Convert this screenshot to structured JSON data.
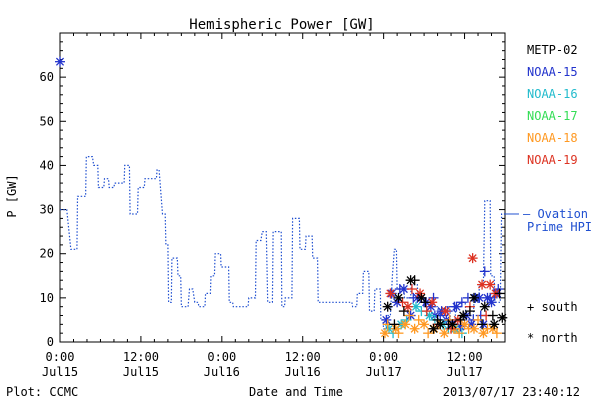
{
  "chart_data": {
    "type": "line",
    "title": "Hemispheric Power [GW]",
    "ylabel": "P [GW]",
    "xlabel": "Date and Time",
    "xlim": [
      0,
      66
    ],
    "ylim": [
      0,
      70
    ],
    "yticks": [
      0,
      10,
      20,
      30,
      40,
      50,
      60
    ],
    "xticks": [
      {
        "x": 0,
        "time": "0:00",
        "date": "Jul15"
      },
      {
        "x": 12,
        "time": "12:00",
        "date": "Jul15"
      },
      {
        "x": 24,
        "time": "0:00",
        "date": "Jul16"
      },
      {
        "x": 36,
        "time": "12:00",
        "date": "Jul16"
      },
      {
        "x": 48,
        "time": "0:00",
        "date": "Jul17"
      },
      {
        "x": 60,
        "time": "12:00",
        "date": "Jul17"
      }
    ],
    "series": [
      {
        "name": "Ovation Prime HPI",
        "color": "#1f4fd0",
        "style": "dotted-step",
        "points": [
          [
            0,
            30
          ],
          [
            1,
            30
          ],
          [
            1.6,
            21
          ],
          [
            2.5,
            21
          ],
          [
            2.6,
            33
          ],
          [
            3.8,
            33
          ],
          [
            3.9,
            42
          ],
          [
            4.8,
            42
          ],
          [
            5,
            40
          ],
          [
            5.6,
            40
          ],
          [
            5.7,
            35
          ],
          [
            6.5,
            35
          ],
          [
            6.6,
            37
          ],
          [
            7.2,
            37
          ],
          [
            7.3,
            35
          ],
          [
            8,
            35
          ],
          [
            8.1,
            36
          ],
          [
            9.5,
            36
          ],
          [
            9.6,
            40
          ],
          [
            10.3,
            40
          ],
          [
            10.4,
            29
          ],
          [
            11.5,
            29
          ],
          [
            11.6,
            35
          ],
          [
            12.5,
            35
          ],
          [
            12.6,
            37
          ],
          [
            14.3,
            37
          ],
          [
            14.4,
            39
          ],
          [
            14.7,
            39
          ],
          [
            15.2,
            29
          ],
          [
            15.6,
            29
          ],
          [
            15.7,
            22
          ],
          [
            16.0,
            22
          ],
          [
            16.1,
            9
          ],
          [
            16.5,
            9
          ],
          [
            16.6,
            19
          ],
          [
            17.4,
            19
          ],
          [
            17.5,
            15
          ],
          [
            17.9,
            15
          ],
          [
            18,
            8
          ],
          [
            19,
            8
          ],
          [
            19.2,
            12
          ],
          [
            19.7,
            12
          ],
          [
            20,
            9
          ],
          [
            20.5,
            9
          ],
          [
            20.6,
            8
          ],
          [
            21.5,
            8
          ],
          [
            21.6,
            11
          ],
          [
            22.3,
            11
          ],
          [
            22.4,
            15
          ],
          [
            22.9,
            15
          ],
          [
            23,
            20
          ],
          [
            23.8,
            20
          ],
          [
            23.9,
            17
          ],
          [
            25,
            17
          ],
          [
            25.1,
            9
          ],
          [
            25.6,
            9
          ],
          [
            25.7,
            8
          ],
          [
            27.9,
            8
          ],
          [
            28,
            10
          ],
          [
            29,
            10
          ],
          [
            29.1,
            23
          ],
          [
            29.8,
            23
          ],
          [
            30,
            25
          ],
          [
            30.6,
            25
          ],
          [
            30.8,
            9
          ],
          [
            31.5,
            9
          ],
          [
            31.6,
            25
          ],
          [
            32.8,
            25
          ],
          [
            32.9,
            8
          ],
          [
            33.3,
            8
          ],
          [
            33.4,
            10
          ],
          [
            34.4,
            10
          ],
          [
            34.5,
            28
          ],
          [
            35.5,
            28
          ],
          [
            35.6,
            21
          ],
          [
            36.4,
            21
          ],
          [
            36.5,
            24
          ],
          [
            37.4,
            24
          ],
          [
            37.5,
            19
          ],
          [
            38.2,
            19
          ],
          [
            38.3,
            9
          ],
          [
            41.9,
            9
          ],
          [
            42,
            9
          ],
          [
            43.3,
            9
          ],
          [
            43.4,
            8
          ],
          [
            44,
            8
          ],
          [
            44.1,
            11
          ],
          [
            44.9,
            11
          ],
          [
            45,
            16
          ],
          [
            45.8,
            16
          ],
          [
            45.9,
            7
          ],
          [
            46.6,
            7
          ],
          [
            46.7,
            12
          ],
          [
            47.5,
            12
          ],
          [
            47.6,
            5
          ],
          [
            47.9,
            5
          ],
          [
            48,
            3
          ],
          [
            48.4,
            3
          ],
          [
            48.5,
            6
          ],
          [
            49,
            6
          ],
          [
            49.3,
            15
          ],
          [
            49.6,
            21
          ],
          [
            49.9,
            21
          ],
          [
            50,
            12
          ],
          [
            51,
            12
          ],
          [
            51.1,
            10
          ],
          [
            52,
            10
          ],
          [
            52.1,
            13
          ],
          [
            53,
            13
          ],
          [
            53.1,
            10
          ],
          [
            54,
            10
          ],
          [
            54.1,
            9
          ],
          [
            54.9,
            9
          ],
          [
            55,
            8
          ],
          [
            56,
            8
          ],
          [
            56.1,
            7
          ],
          [
            57,
            7
          ],
          [
            57.1,
            8
          ],
          [
            57.8,
            8
          ],
          [
            57.9,
            5
          ],
          [
            58.6,
            5
          ],
          [
            58.7,
            8
          ],
          [
            59.4,
            8
          ],
          [
            59.5,
            9
          ],
          [
            60.1,
            9
          ],
          [
            60.2,
            6
          ],
          [
            61.3,
            6
          ],
          [
            61.4,
            9
          ],
          [
            62.1,
            9
          ],
          [
            62.2,
            13
          ],
          [
            62.8,
            13
          ],
          [
            63,
            32
          ],
          [
            63.8,
            32
          ],
          [
            63.9,
            15
          ],
          [
            64.4,
            15
          ],
          [
            64.5,
            9
          ],
          [
            65.3,
            9
          ],
          [
            65.5,
            29
          ],
          [
            66,
            29
          ]
        ]
      }
    ],
    "markers": [
      {
        "satellite": "NOAA-15",
        "color": "#2233cc",
        "hemisphere": "north",
        "points": [
          [
            0,
            63.5
          ],
          [
            48.4,
            5
          ],
          [
            49.2,
            11
          ],
          [
            50,
            9
          ],
          [
            51,
            12
          ],
          [
            52,
            6
          ],
          [
            53,
            10
          ],
          [
            54.3,
            9
          ],
          [
            55,
            8
          ],
          [
            55.6,
            6
          ],
          [
            56.6,
            7
          ],
          [
            57.3,
            5
          ],
          [
            58,
            4
          ],
          [
            58.8,
            8
          ],
          [
            59.4,
            3.5
          ],
          [
            60.3,
            6
          ],
          [
            61,
            4
          ],
          [
            61.6,
            10
          ],
          [
            62.2,
            10
          ],
          [
            62.8,
            4
          ],
          [
            63.4,
            10
          ],
          [
            64,
            9
          ],
          [
            64.8,
            11
          ]
        ]
      },
      {
        "satellite": "NOAA-15",
        "color": "#2233cc",
        "hemisphere": "south",
        "points": [
          [
            50.4,
            12
          ],
          [
            52.4,
            10
          ],
          [
            54,
            9
          ],
          [
            55.4,
            10
          ],
          [
            56.4,
            6
          ],
          [
            57.5,
            7
          ],
          [
            58.5,
            8
          ],
          [
            59.6,
            9
          ],
          [
            60.5,
            10
          ],
          [
            61.3,
            5
          ],
          [
            62.4,
            6
          ],
          [
            63,
            16
          ],
          [
            63.8,
            10
          ],
          [
            65,
            12
          ]
        ]
      },
      {
        "satellite": "NOAA-16",
        "color": "#22bbcc",
        "hemisphere": "north",
        "points": [
          [
            48.8,
            3
          ],
          [
            50.6,
            4
          ],
          [
            52.8,
            8
          ],
          [
            54.8,
            6
          ],
          [
            56.8,
            4
          ],
          [
            58.6,
            3
          ]
        ]
      },
      {
        "satellite": "NOAA-16",
        "color": "#22bbcc",
        "hemisphere": "south",
        "points": [
          [
            49.4,
            2
          ],
          [
            51.4,
            5
          ],
          [
            53.6,
            7
          ],
          [
            55.6,
            5
          ],
          [
            57.6,
            3
          ],
          [
            59.6,
            2
          ]
        ]
      },
      {
        "satellite": "NOAA-17",
        "color": "#33dd55",
        "hemisphere": "north",
        "points": []
      },
      {
        "satellite": "NOAA-18",
        "color": "#ff9922",
        "hemisphere": "north",
        "points": [
          [
            48.2,
            2
          ],
          [
            49.8,
            3
          ],
          [
            51.2,
            4
          ],
          [
            52.6,
            3
          ],
          [
            54,
            4
          ],
          [
            55.5,
            3
          ],
          [
            57,
            2
          ],
          [
            58.4,
            3
          ],
          [
            60,
            4
          ],
          [
            61.4,
            3
          ],
          [
            62.8,
            2
          ],
          [
            64.2,
            3
          ]
        ]
      },
      {
        "satellite": "NOAA-18",
        "color": "#ff9922",
        "hemisphere": "south",
        "points": [
          [
            48.6,
            4
          ],
          [
            50.2,
            2
          ],
          [
            51.8,
            6
          ],
          [
            53.2,
            5
          ],
          [
            54.6,
            2
          ],
          [
            56.2,
            4
          ],
          [
            57.8,
            5
          ],
          [
            59.2,
            2
          ],
          [
            60.6,
            3
          ],
          [
            62,
            5
          ],
          [
            63.4,
            3
          ],
          [
            64.8,
            2
          ]
        ]
      },
      {
        "satellite": "NOAA-19",
        "color": "#dd3322",
        "hemisphere": "north",
        "points": [
          [
            49,
            11
          ],
          [
            51.6,
            8
          ],
          [
            53.4,
            11
          ],
          [
            55.2,
            9
          ],
          [
            57.2,
            7
          ],
          [
            59,
            5
          ],
          [
            61.2,
            19
          ],
          [
            62.6,
            13
          ],
          [
            63.8,
            13
          ],
          [
            64.6,
            11
          ]
        ]
      },
      {
        "satellite": "NOAA-19",
        "color": "#dd3322",
        "hemisphere": "south",
        "points": [
          [
            50.8,
            9
          ],
          [
            52.2,
            12
          ],
          [
            54.4,
            7
          ],
          [
            56,
            4
          ],
          [
            58,
            3
          ],
          [
            60.8,
            8
          ],
          [
            63.2,
            6
          ]
        ]
      },
      {
        "satellite": "METP-02",
        "color": "#000000",
        "hemisphere": "north",
        "points": [
          [
            48.6,
            8
          ],
          [
            50.2,
            10
          ],
          [
            52,
            14
          ],
          [
            53.6,
            10
          ],
          [
            55.4,
            3
          ],
          [
            56.4,
            4
          ],
          [
            58.2,
            4
          ],
          [
            59.8,
            6
          ],
          [
            61.4,
            10
          ],
          [
            63,
            8
          ],
          [
            64.4,
            4
          ],
          [
            65.6,
            5.5
          ]
        ]
      },
      {
        "satellite": "METP-02",
        "color": "#000000",
        "hemisphere": "south",
        "points": [
          [
            49.6,
            4
          ],
          [
            51,
            7
          ],
          [
            52.6,
            14
          ],
          [
            54.2,
            9
          ],
          [
            56,
            5
          ],
          [
            57.6,
            4
          ],
          [
            59.4,
            5
          ],
          [
            60.8,
            7
          ],
          [
            62.6,
            4
          ],
          [
            64.2,
            6
          ],
          [
            65.2,
            11
          ]
        ]
      }
    ],
    "legend": {
      "placement": "right",
      "entries": [
        {
          "label": "METP-02",
          "color": "#000000"
        },
        {
          "label": "NOAA-15",
          "color": "#2233cc"
        },
        {
          "label": "NOAA-16",
          "color": "#22bbcc"
        },
        {
          "label": "NOAA-17",
          "color": "#33dd55"
        },
        {
          "label": "NOAA-18",
          "color": "#ff9922"
        },
        {
          "label": "NOAA-19",
          "color": "#dd3322"
        }
      ],
      "model_label_line1": "— Ovation",
      "model_label_line2": "Prime HPI",
      "model_value": 29,
      "model_color": "#1f4fd0",
      "south_label": "+ south",
      "north_label": "* north"
    },
    "footer": {
      "left": "Plot: CCMC",
      "center": "Date and Time",
      "right": "2013/07/17 23:40:12"
    }
  }
}
